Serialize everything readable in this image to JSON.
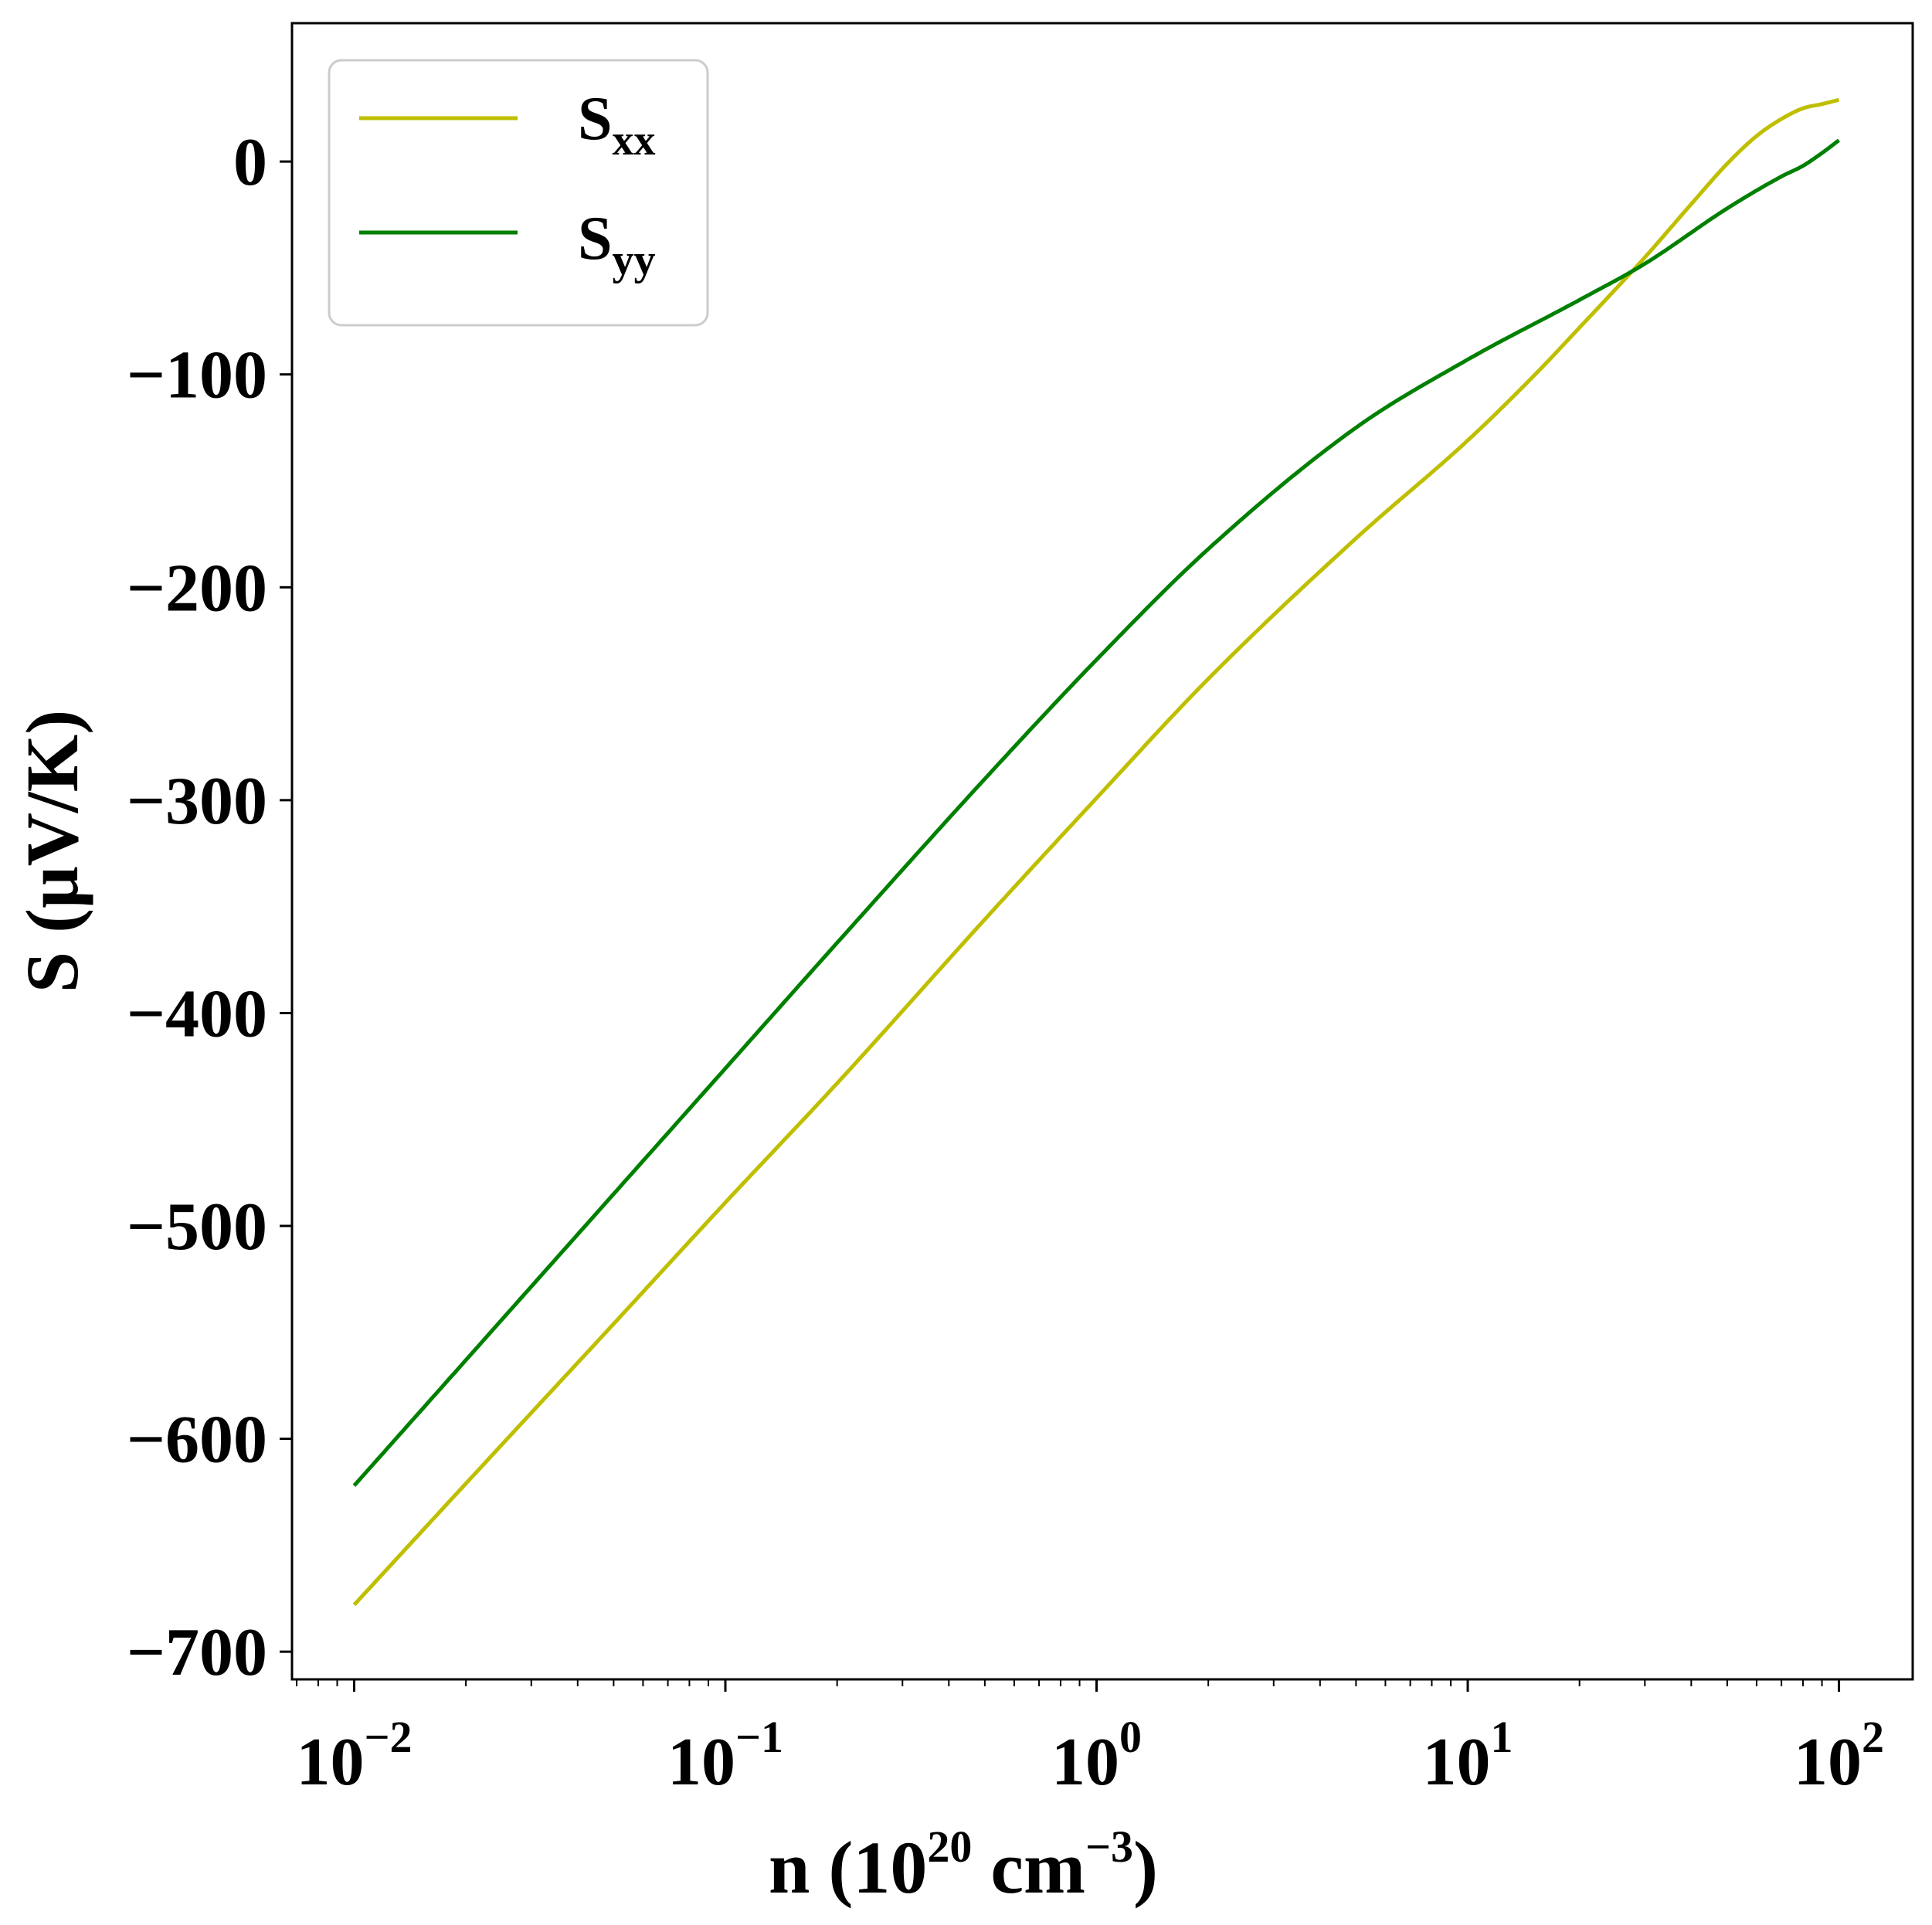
{
  "chart_data": {
    "type": "line",
    "title": "",
    "xlabel": {
      "text": "n (10",
      "sup1": "20",
      "mid": " cm",
      "sup2": "−3",
      "end": ")"
    },
    "ylabel": "S (μV/K)",
    "xscale": "log",
    "xlim": [
      0.0068,
      158
    ],
    "ylim": [
      -713,
      65
    ],
    "x_ticks": [
      {
        "value": 0.01,
        "base": "10",
        "exp": "−2"
      },
      {
        "value": 0.1,
        "base": "10",
        "exp": "−1"
      },
      {
        "value": 1,
        "base": "10",
        "exp": "0"
      },
      {
        "value": 10,
        "base": "10",
        "exp": "1"
      },
      {
        "value": 100,
        "base": "10",
        "exp": "2"
      }
    ],
    "y_ticks": [
      {
        "value": 0,
        "label": "0"
      },
      {
        "value": -100,
        "label": "−100"
      },
      {
        "value": -200,
        "label": "−200"
      },
      {
        "value": -300,
        "label": "−300"
      },
      {
        "value": -400,
        "label": "−400"
      },
      {
        "value": -500,
        "label": "−500"
      },
      {
        "value": -600,
        "label": "−600"
      },
      {
        "value": -700,
        "label": "−700"
      }
    ],
    "grid": false,
    "legend_position": "top-left",
    "series": [
      {
        "name": "S",
        "sub": "xx",
        "color": "#bfbf00",
        "x": [
          0.01,
          0.02,
          0.05,
          0.1,
          0.2,
          0.5,
          1,
          2,
          5,
          10,
          15,
          20,
          25,
          30,
          40,
          50,
          60,
          70,
          80,
          90,
          100
        ],
        "y": [
          -678,
          -621,
          -546,
          -489,
          -433,
          -356,
          -299,
          -243,
          -177,
          -131,
          -101,
          -78,
          -60,
          -45,
          -20,
          -1,
          12,
          20,
          25,
          27,
          29
        ]
      },
      {
        "name": "S",
        "sub": "yy",
        "color": "#008000",
        "x": [
          0.01,
          0.02,
          0.05,
          0.1,
          0.2,
          0.5,
          1,
          2,
          5,
          10,
          20,
          30,
          50,
          70,
          80,
          90,
          100
        ],
        "y": [
          -622,
          -563,
          -485,
          -426,
          -367,
          -290,
          -234,
          -182,
          -125,
          -93,
          -65,
          -48,
          -22,
          -7,
          -2,
          4,
          10
        ]
      }
    ]
  }
}
